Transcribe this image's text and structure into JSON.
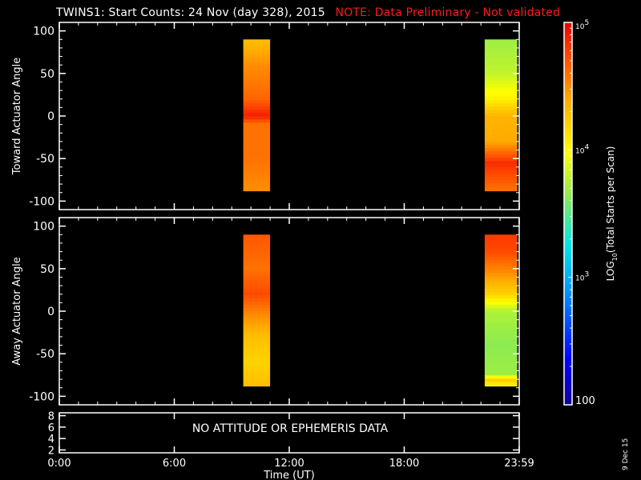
{
  "title": {
    "main": "TWINS1: Start Counts: 24 Nov (day 328), 2015",
    "note": "NOTE: Data Preliminary - Not validated"
  },
  "footer": {
    "date_stamp": "9 Dec 15"
  },
  "colors": {
    "background": "#000000",
    "foreground": "#ffffff",
    "note": "#ff1a1a"
  },
  "chart_data": [
    {
      "type": "heatmap",
      "name": "toward-actuator",
      "ylabel": "Toward Actuator Angle",
      "xlim": [
        0,
        24
      ],
      "ylim": [
        -110,
        110
      ],
      "yticks": [
        100,
        50,
        0,
        -50,
        -100
      ],
      "xticks": [
        0,
        6,
        12,
        18,
        24
      ],
      "coverage": [
        {
          "start": 9.6,
          "end": 11.0,
          "angle_min": -88,
          "angle_max": 90,
          "profile": [
            {
              "angle": 90,
              "value": 4.3
            },
            {
              "angle": 60,
              "value": 4.5
            },
            {
              "angle": 20,
              "value": 4.65
            },
            {
              "angle": 0,
              "value": 4.9
            },
            {
              "angle": -10,
              "value": 4.6
            },
            {
              "angle": -50,
              "value": 4.6
            },
            {
              "angle": -88,
              "value": 4.5
            }
          ]
        },
        {
          "start": 22.2,
          "end": 23.9,
          "angle_min": -88,
          "angle_max": 90,
          "profile": [
            {
              "angle": 90,
              "value": 3.7
            },
            {
              "angle": 50,
              "value": 3.8
            },
            {
              "angle": 20,
              "value": 4.05
            },
            {
              "angle": 0,
              "value": 4.35
            },
            {
              "angle": -30,
              "value": 4.4
            },
            {
              "angle": -55,
              "value": 4.85
            },
            {
              "angle": -88,
              "value": 4.6
            }
          ]
        }
      ]
    },
    {
      "type": "heatmap",
      "name": "away-actuator",
      "ylabel": "Away Actuator Angle",
      "xlim": [
        0,
        24
      ],
      "ylim": [
        -110,
        110
      ],
      "yticks": [
        100,
        50,
        0,
        -50,
        -100
      ],
      "xticks": [
        0,
        6,
        12,
        18,
        24
      ],
      "coverage": [
        {
          "start": 9.6,
          "end": 11.0,
          "angle_min": -88,
          "angle_max": 90,
          "profile": [
            {
              "angle": 90,
              "value": 4.7
            },
            {
              "angle": 50,
              "value": 4.6
            },
            {
              "angle": 20,
              "value": 4.75
            },
            {
              "angle": 0,
              "value": 4.55
            },
            {
              "angle": -30,
              "value": 4.3
            },
            {
              "angle": -60,
              "value": 4.2
            },
            {
              "angle": -88,
              "value": 4.3
            }
          ]
        },
        {
          "start": 22.2,
          "end": 23.9,
          "angle_min": -88,
          "angle_max": 90,
          "profile": [
            {
              "angle": 90,
              "value": 4.8
            },
            {
              "angle": 70,
              "value": 4.75
            },
            {
              "angle": 45,
              "value": 4.5
            },
            {
              "angle": 20,
              "value": 4.2
            },
            {
              "angle": 0,
              "value": 3.75
            },
            {
              "angle": -40,
              "value": 3.65
            },
            {
              "angle": -75,
              "value": 3.7
            },
            {
              "angle": -80,
              "value": 4.25
            },
            {
              "angle": -88,
              "value": 4.0
            }
          ]
        }
      ]
    },
    {
      "type": "line",
      "name": "ephemeris",
      "ylim": [
        1.5,
        8.5
      ],
      "yticks": [
        8,
        6,
        4,
        2
      ],
      "xlim": [
        0,
        24
      ],
      "message": "NO ATTITUDE OR EPHEMERIS DATA"
    }
  ],
  "x_axis": {
    "label": "Time (UT)",
    "ticks": [
      {
        "value": 0,
        "label": "0:00"
      },
      {
        "value": 6,
        "label": "6:00"
      },
      {
        "value": 12,
        "label": "12:00"
      },
      {
        "value": 18,
        "label": "18:00"
      },
      {
        "value": 24,
        "label": "23:59"
      }
    ]
  },
  "colorbar": {
    "label": "LOG10(Total Starts per Scan)",
    "label_base": "LOG",
    "label_sub": "10",
    "label_rest": "(Total Starts per Scan)",
    "range": [
      2,
      5
    ],
    "ticks": [
      {
        "value": 2,
        "label": "100",
        "sup": ""
      },
      {
        "value": 3,
        "label": "10",
        "sup": "3"
      },
      {
        "value": 4,
        "label": "10",
        "sup": "4"
      },
      {
        "value": 5,
        "label": "10",
        "sup": "5"
      }
    ]
  }
}
